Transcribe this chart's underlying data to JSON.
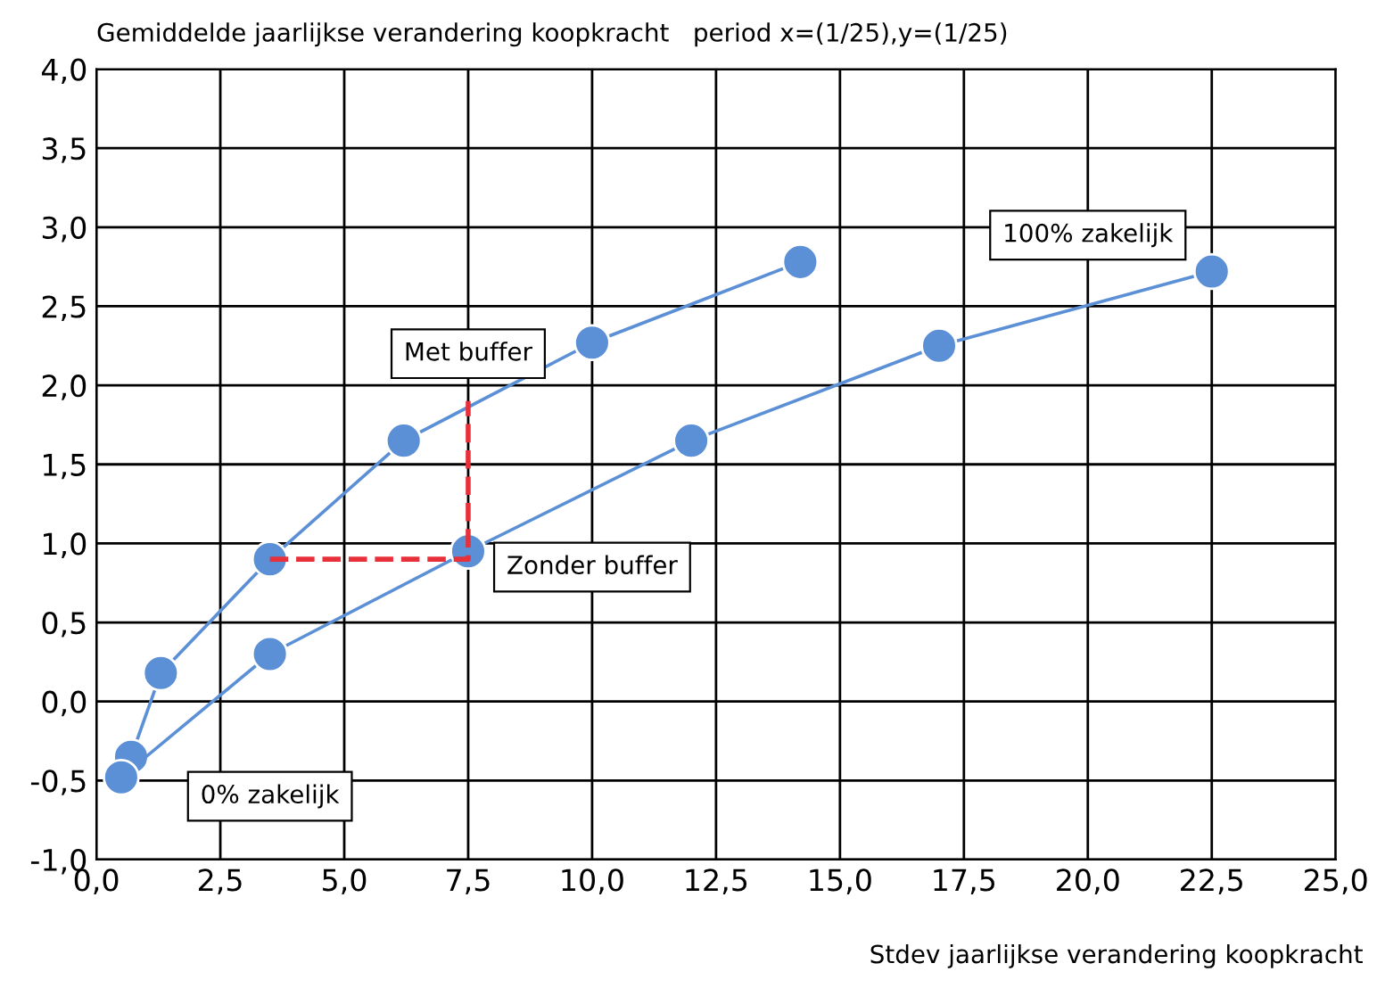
{
  "chart_data": {
    "type": "line",
    "title": "Gemiddelde jaarlijkse verandering koopkracht   period x=(1/25),y=(1/25)",
    "xlabel": "Stdev jaarlijkse verandering koopkracht",
    "series": [
      {
        "color": "#5b8fd6",
        "x": [
          0.7,
          1.3,
          3.5,
          6.2,
          10.0,
          14.2
        ],
        "values": [
          -0.35,
          0.18,
          0.9,
          1.65,
          2.27,
          2.78
        ]
      },
      {
        "color": "#5b8fd6",
        "x": [
          0.5,
          3.5,
          7.5,
          12.0,
          17.0,
          22.5
        ],
        "values": [
          -0.48,
          0.3,
          0.95,
          1.65,
          2.25,
          2.72
        ]
      },
      {
        "color": "#e8303a",
        "x": [
          3.5,
          7.5,
          7.5
        ],
        "values": [
          0.9,
          0.9,
          1.9
        ],
        "line_style": "dashed",
        "marker": "none"
      }
    ],
    "marker": "circle",
    "grid": true,
    "xlim": [
      0,
      25
    ],
    "xticks": [
      {
        "value": 0,
        "label": "0,0"
      },
      {
        "value": 2.5,
        "label": "2,5"
      },
      {
        "value": 5,
        "label": "5,0"
      },
      {
        "value": 7.5,
        "label": "7,5"
      },
      {
        "value": 10,
        "label": "10,0"
      },
      {
        "value": 12.5,
        "label": "12,5"
      },
      {
        "value": 15,
        "label": "15,0"
      },
      {
        "value": 17.5,
        "label": "17,5"
      },
      {
        "value": 20,
        "label": "20,0"
      },
      {
        "value": 22.5,
        "label": "22,5"
      },
      {
        "value": 25,
        "label": "25,0"
      }
    ],
    "ylim": [
      -1,
      4
    ],
    "yticks": [
      {
        "value": -1,
        "label": "-1,0"
      },
      {
        "value": -0.5,
        "label": "-0,5"
      },
      {
        "value": 0,
        "label": "0,0"
      },
      {
        "value": 0.5,
        "label": "0,5"
      },
      {
        "value": 1,
        "label": "1,0"
      },
      {
        "value": 1.5,
        "label": "1,5"
      },
      {
        "value": 2,
        "label": "2,0"
      },
      {
        "value": 2.5,
        "label": "2,5"
      },
      {
        "value": 3,
        "label": "3,0"
      },
      {
        "value": 3.5,
        "label": "3,5"
      },
      {
        "value": 4,
        "label": "4,0"
      }
    ],
    "annotations": [
      "Met buffer",
      "Zonder buffer",
      "100% zakelijk",
      "0% zakelijk"
    ]
  }
}
